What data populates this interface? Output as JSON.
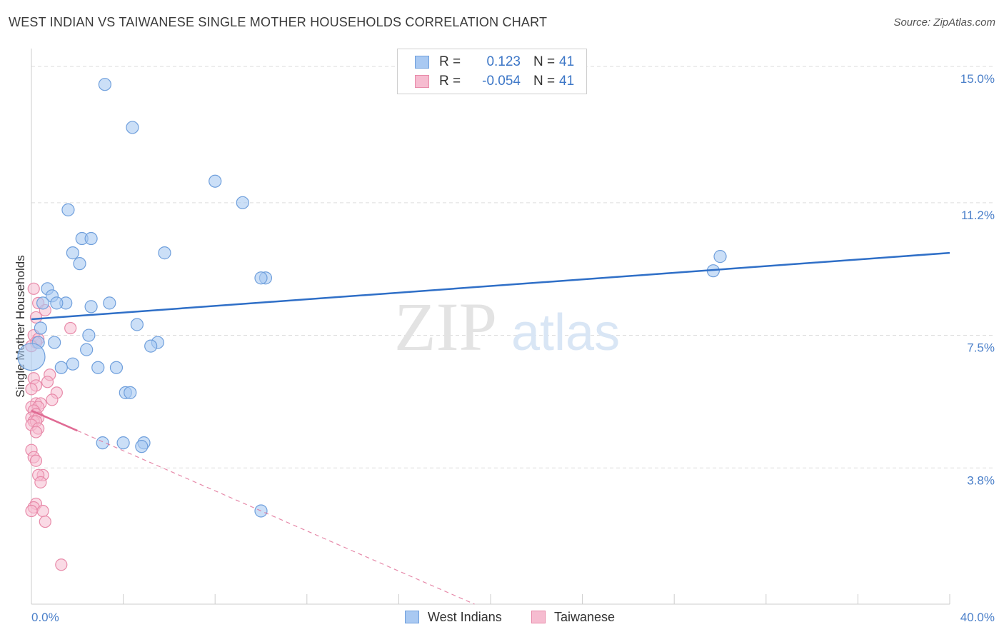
{
  "title": "WEST INDIAN VS TAIWANESE SINGLE MOTHER HOUSEHOLDS CORRELATION CHART",
  "source": "Source: ZipAtlas.com",
  "watermark": {
    "zip": "ZIP",
    "atlas": "atlas"
  },
  "legend": {
    "rows": [
      {
        "r_label": "R =",
        "r_value": "0.123",
        "n_label": "N =",
        "n_value": "41"
      },
      {
        "r_label": "R =",
        "r_value": "-0.054",
        "n_label": "N =",
        "n_value": "41"
      }
    ]
  },
  "bottom_legend": {
    "series1": "West Indians",
    "series2": "Taiwanese"
  },
  "colors": {
    "blue_fill": "#a9c9f2",
    "blue_stroke": "#6f9fdc",
    "blue_line": "#2f6fc7",
    "pink_fill": "#f6bcd0",
    "pink_stroke": "#e88aa9",
    "pink_line": "#e06b94",
    "grid": "#dddddd",
    "axis": "#cccccc",
    "tick_text": "#4a7fc9"
  },
  "chart_data": {
    "type": "scatter",
    "title": "WEST INDIAN VS TAIWANESE SINGLE MOTHER HOUSEHOLDS CORRELATION CHART",
    "xlabel": "",
    "ylabel": "Single Mother Households",
    "xlim": [
      0,
      40
    ],
    "ylim": [
      0.0,
      15.5
    ],
    "x_tick_labels": [
      "0.0%",
      "40.0%"
    ],
    "y_ticks": [
      3.8,
      7.5,
      11.2,
      15.0
    ],
    "y_tick_labels": [
      "3.8%",
      "7.5%",
      "11.2%",
      "15.0%"
    ],
    "grid": true,
    "series": [
      {
        "name": "West Indians",
        "r": 0.123,
        "n": 41,
        "trend": {
          "x": [
            0,
            40
          ],
          "y": [
            7.95,
            9.8
          ]
        },
        "points": [
          [
            3.2,
            14.5
          ],
          [
            4.4,
            13.3
          ],
          [
            8.0,
            11.8
          ],
          [
            9.2,
            11.2
          ],
          [
            1.6,
            11.0
          ],
          [
            2.2,
            10.2
          ],
          [
            2.6,
            10.2
          ],
          [
            1.8,
            9.8
          ],
          [
            2.1,
            9.5
          ],
          [
            5.8,
            9.8
          ],
          [
            10.2,
            9.1
          ],
          [
            10.0,
            9.1
          ],
          [
            0.7,
            8.8
          ],
          [
            0.9,
            8.6
          ],
          [
            1.5,
            8.4
          ],
          [
            1.1,
            8.4
          ],
          [
            0.5,
            8.4
          ],
          [
            2.6,
            8.3
          ],
          [
            3.4,
            8.4
          ],
          [
            4.6,
            7.8
          ],
          [
            0.4,
            7.7
          ],
          [
            2.5,
            7.5
          ],
          [
            0.3,
            7.3
          ],
          [
            1.0,
            7.3
          ],
          [
            5.5,
            7.3
          ],
          [
            5.2,
            7.2
          ],
          [
            2.4,
            7.1
          ],
          [
            0.0,
            6.9
          ],
          [
            1.8,
            6.7
          ],
          [
            1.3,
            6.6
          ],
          [
            2.9,
            6.6
          ],
          [
            3.7,
            6.6
          ],
          [
            4.1,
            5.9
          ],
          [
            4.3,
            5.9
          ],
          [
            3.1,
            4.5
          ],
          [
            4.0,
            4.5
          ],
          [
            4.9,
            4.5
          ],
          [
            4.8,
            4.4
          ],
          [
            30.0,
            9.7
          ],
          [
            29.7,
            9.3
          ],
          [
            10.0,
            2.6
          ]
        ]
      },
      {
        "name": "Taiwanese",
        "r": -0.054,
        "n": 41,
        "trend": {
          "x": [
            0,
            19.3
          ],
          "y": [
            5.4,
            0.0
          ],
          "solid_until_x": 2.0
        },
        "points": [
          [
            0.1,
            8.8
          ],
          [
            0.3,
            8.4
          ],
          [
            0.6,
            8.2
          ],
          [
            0.2,
            8.0
          ],
          [
            1.7,
            7.7
          ],
          [
            0.1,
            7.5
          ],
          [
            0.3,
            7.4
          ],
          [
            0.2,
            7.3
          ],
          [
            0.0,
            7.2
          ],
          [
            0.8,
            6.4
          ],
          [
            0.1,
            6.3
          ],
          [
            0.7,
            6.2
          ],
          [
            0.2,
            6.1
          ],
          [
            0.0,
            6.0
          ],
          [
            1.1,
            5.9
          ],
          [
            0.9,
            5.7
          ],
          [
            0.2,
            5.6
          ],
          [
            0.4,
            5.6
          ],
          [
            0.0,
            5.5
          ],
          [
            0.3,
            5.5
          ],
          [
            0.1,
            5.4
          ],
          [
            0.2,
            5.3
          ],
          [
            0.0,
            5.2
          ],
          [
            0.3,
            5.2
          ],
          [
            0.1,
            5.1
          ],
          [
            0.2,
            5.1
          ],
          [
            0.0,
            5.0
          ],
          [
            0.3,
            4.9
          ],
          [
            0.2,
            4.8
          ],
          [
            0.0,
            4.3
          ],
          [
            0.1,
            4.1
          ],
          [
            0.2,
            4.0
          ],
          [
            0.5,
            3.6
          ],
          [
            0.3,
            3.6
          ],
          [
            0.4,
            3.4
          ],
          [
            0.2,
            2.8
          ],
          [
            0.1,
            2.7
          ],
          [
            0.0,
            2.6
          ],
          [
            0.5,
            2.6
          ],
          [
            0.6,
            2.3
          ],
          [
            1.3,
            1.1
          ]
        ]
      }
    ]
  }
}
